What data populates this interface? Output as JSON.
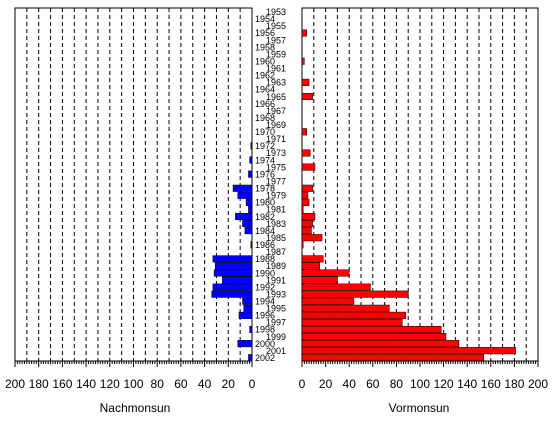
{
  "chart_data": [
    {
      "type": "bar",
      "orientation": "horizontal",
      "direction": "leftward",
      "xlabel": "Nachmonsun",
      "xlim": [
        0,
        200
      ],
      "xticks": [
        "200",
        "180",
        "160",
        "140",
        "120",
        "100",
        "80",
        "60",
        "40",
        "20",
        "0"
      ],
      "grid": true,
      "bar_color": "#0000ff",
      "years": [
        1953,
        1954,
        1955,
        1956,
        1957,
        1958,
        1959,
        1960,
        1961,
        1962,
        1963,
        1964,
        1965,
        1966,
        1967,
        1968,
        1969,
        1970,
        1971,
        1972,
        1973,
        1974,
        1975,
        1976,
        1977,
        1978,
        1979,
        1980,
        1981,
        1982,
        1983,
        1984,
        1985,
        1986,
        1987,
        1988,
        1989,
        1990,
        1991,
        1992,
        1993,
        1994,
        1995,
        1996,
        1997,
        1998,
        1999,
        2000,
        2001,
        2002
      ],
      "values": [
        0,
        0,
        0,
        0,
        0,
        0,
        0,
        0,
        0,
        0,
        0,
        0,
        0,
        0,
        0,
        0,
        0,
        0,
        0,
        1,
        0,
        2,
        0,
        3,
        0,
        16,
        12,
        5,
        3,
        14,
        8,
        6,
        0,
        1,
        0,
        33,
        31,
        32,
        25,
        33,
        34,
        8,
        7,
        11,
        0,
        2,
        0,
        12,
        0,
        3
      ]
    },
    {
      "type": "bar",
      "orientation": "horizontal",
      "direction": "rightward",
      "xlabel": "Vormonsun",
      "xlim": [
        0,
        200
      ],
      "xticks": [
        "0",
        "20",
        "40",
        "60",
        "80",
        "100",
        "120",
        "140",
        "160",
        "180",
        "200"
      ],
      "grid": true,
      "bar_color": "#ff0000",
      "years": [
        1953,
        1954,
        1955,
        1956,
        1957,
        1958,
        1959,
        1960,
        1961,
        1962,
        1963,
        1964,
        1965,
        1966,
        1967,
        1968,
        1969,
        1970,
        1971,
        1972,
        1973,
        1974,
        1975,
        1976,
        1977,
        1978,
        1979,
        1980,
        1981,
        1982,
        1983,
        1984,
        1985,
        1986,
        1987,
        1988,
        1989,
        1990,
        1991,
        1992,
        1993,
        1994,
        1995,
        1996,
        1997,
        1998,
        1999,
        2000,
        2001,
        2002
      ],
      "values": [
        0,
        0,
        0,
        4,
        0,
        0,
        0,
        2,
        0,
        0,
        6,
        0,
        9,
        0,
        0,
        0,
        0,
        4,
        0,
        0,
        7,
        0,
        11,
        0,
        0,
        9,
        5,
        6,
        1,
        11,
        9,
        8,
        17,
        1,
        0,
        18,
        15,
        40,
        30,
        58,
        90,
        44,
        74,
        88,
        85,
        118,
        122,
        133,
        181,
        154
      ]
    }
  ]
}
